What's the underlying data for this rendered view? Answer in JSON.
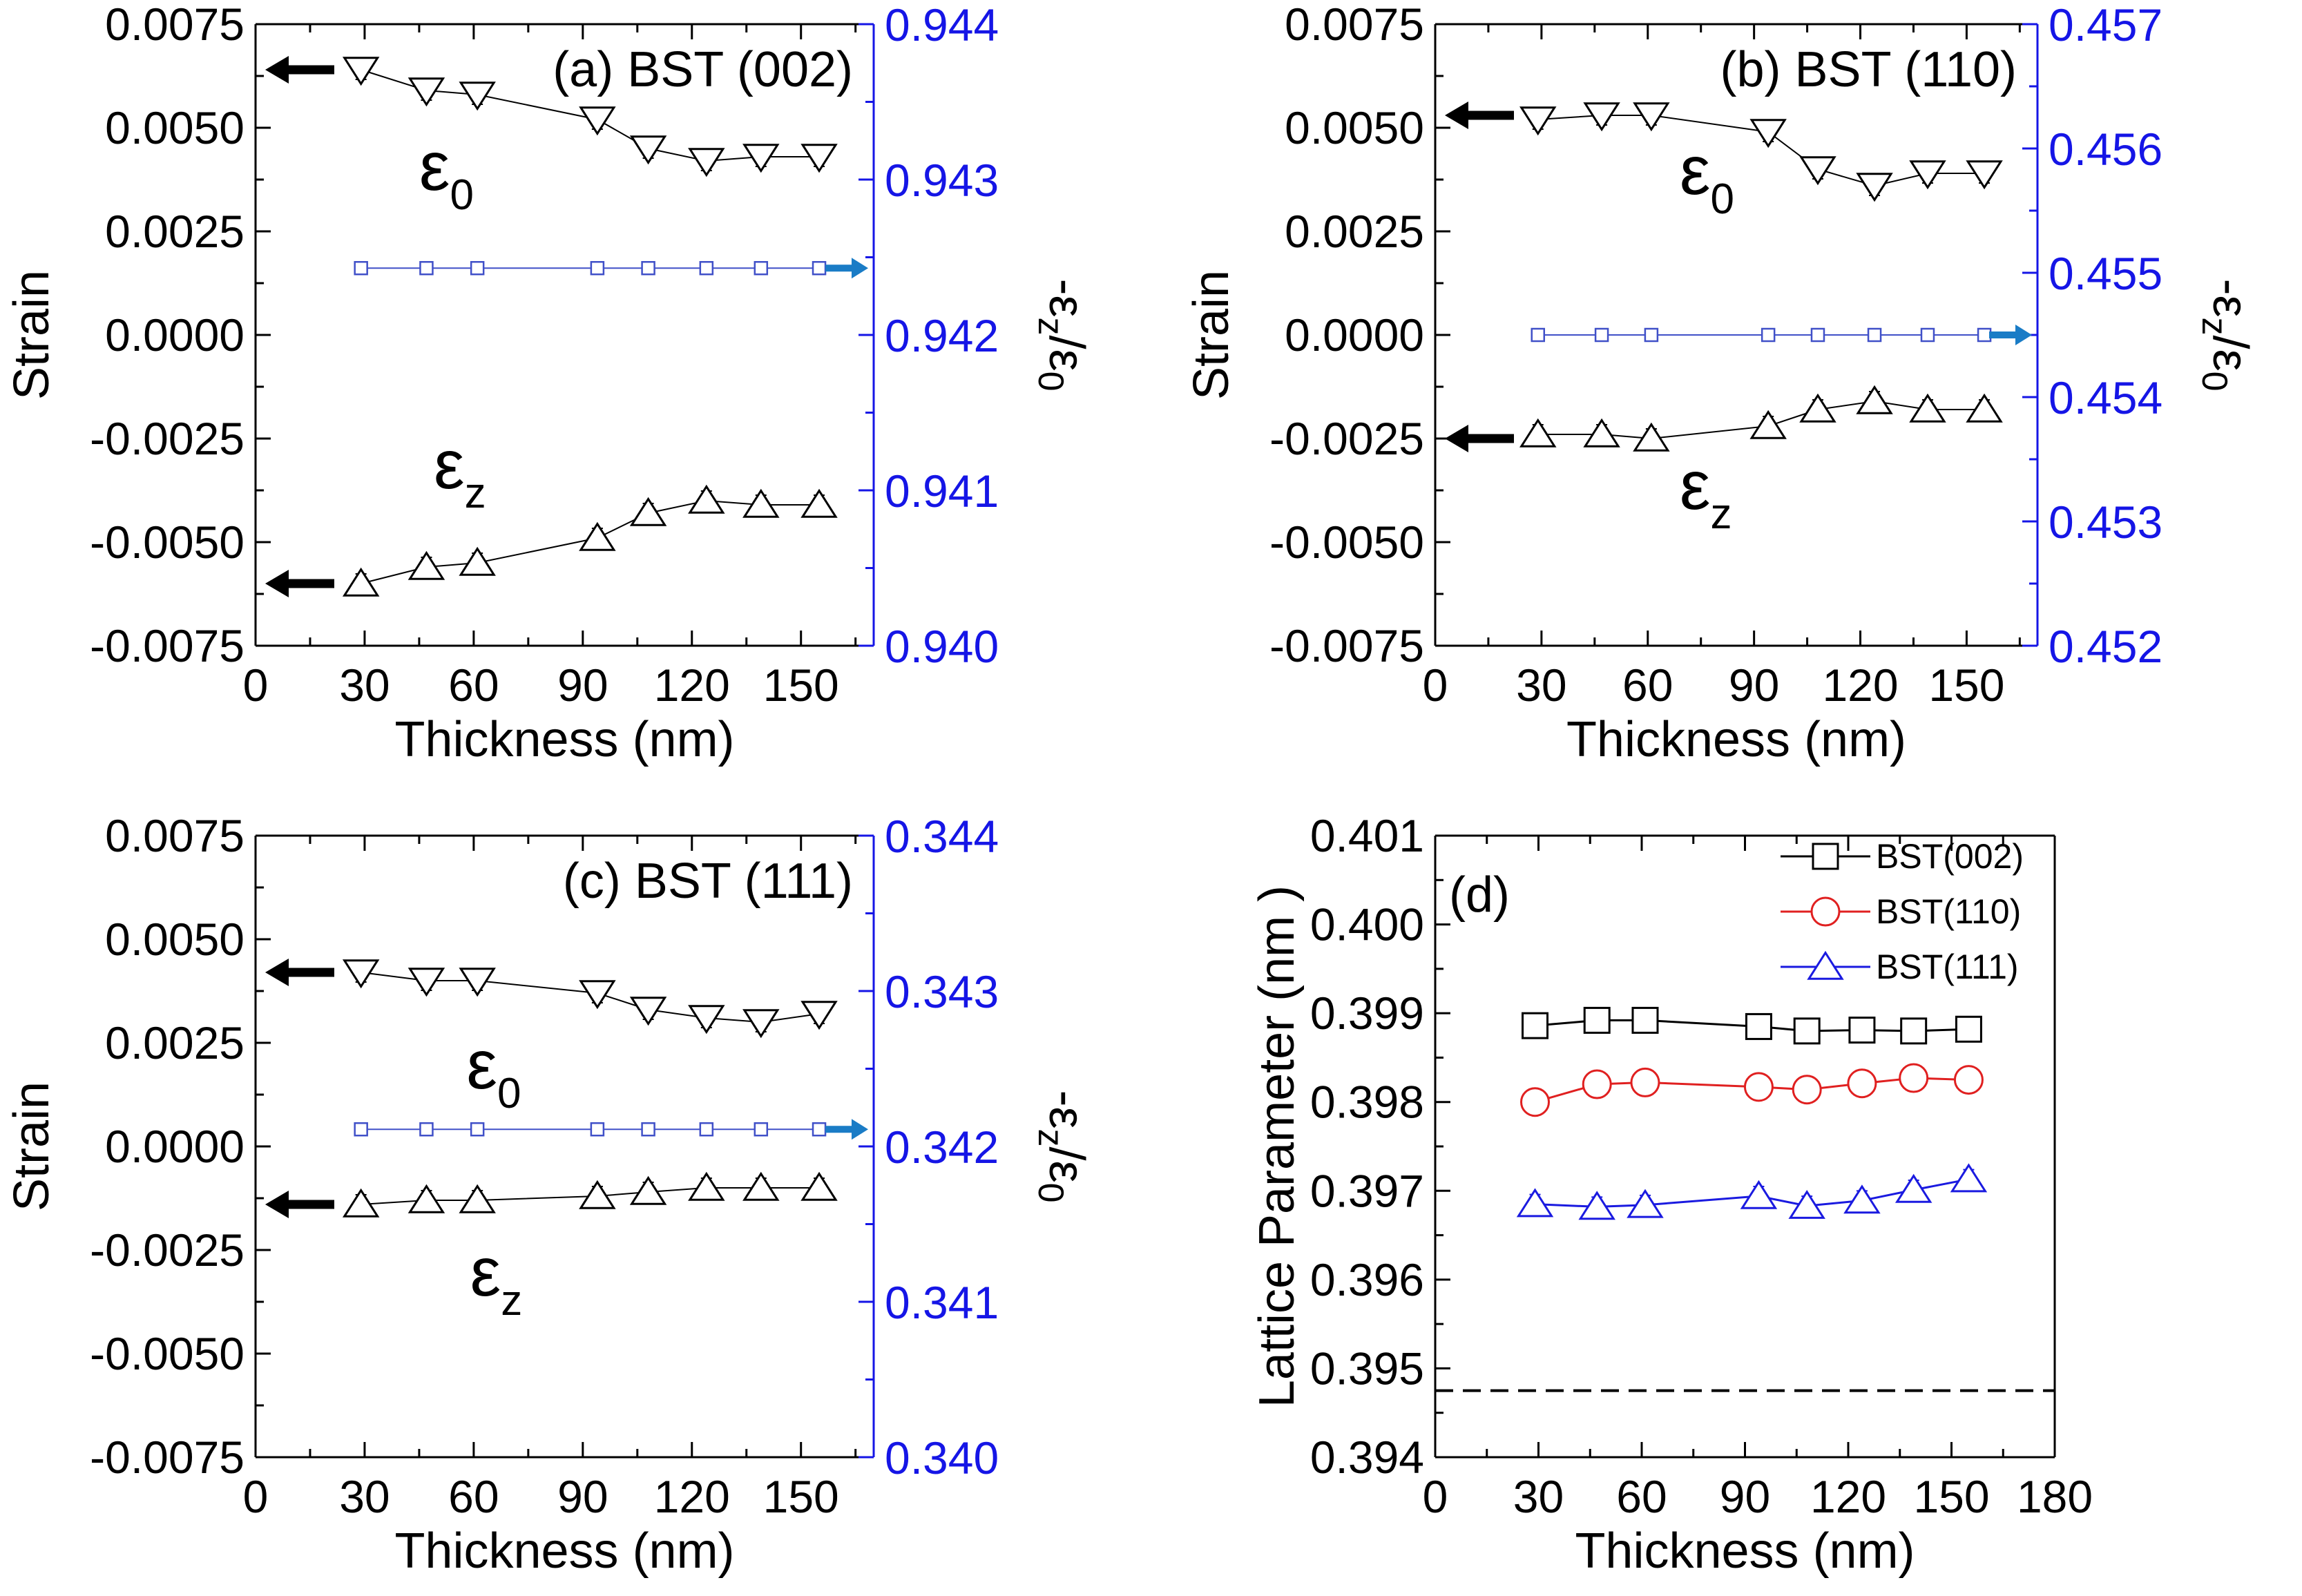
{
  "figure": {
    "colors": {
      "black": "#000000",
      "blue_axis": "#1515e6",
      "marker_blue": "#4050c8",
      "arrow_blue": "#1a7cc6",
      "red": "#e02020",
      "blue_series": "#1a1ae0"
    }
  },
  "chart_data": [
    {
      "id": "a",
      "type": "line",
      "title": "(a) BST (002)",
      "xlabel": "Thickness (nm)",
      "ylabel": "Strain",
      "y2label": "-ε_z/ε_0",
      "y2label_parts": {
        "main": "-ε",
        "sub1": "z",
        "slash": "/ε",
        "sub2": "0"
      },
      "xlim": [
        0,
        170
      ],
      "xticks": [
        0,
        30,
        60,
        90,
        120,
        150
      ],
      "xtick_labels": [
        "0",
        "30",
        "60",
        "90",
        "120",
        "150"
      ],
      "ylim": [
        -0.0075,
        0.0075
      ],
      "yticks": [
        -0.0075,
        -0.005,
        -0.0025,
        0,
        0.0025,
        0.005,
        0.0075
      ],
      "ytick_labels": [
        "-0.0075",
        "-0.0050",
        "-0.0025",
        "0.0000",
        "0.0025",
        "0.0050",
        "0.0075"
      ],
      "y2lim": [
        0.94,
        0.944
      ],
      "y2ticks": [
        0.94,
        0.941,
        0.942,
        0.943,
        0.944
      ],
      "y2tick_labels": [
        "0.940",
        "0.941",
        "0.942",
        "0.943",
        "0.944"
      ],
      "series": [
        {
          "name": "ε0",
          "marker": "triangle-down",
          "axis": "left",
          "color": "#000000",
          "x": [
            29,
            47,
            61,
            94,
            108,
            124,
            139,
            155
          ],
          "y": [
            0.0064,
            0.0059,
            0.0058,
            0.0052,
            0.0045,
            0.0042,
            0.0043,
            0.0043
          ]
        },
        {
          "name": "εz",
          "marker": "triangle-up",
          "axis": "left",
          "color": "#000000",
          "x": [
            29,
            47,
            61,
            94,
            108,
            124,
            139,
            155
          ],
          "y": [
            -0.006,
            -0.0056,
            -0.0055,
            -0.0049,
            -0.0043,
            -0.004,
            -0.0041,
            -0.0041
          ]
        },
        {
          "name": "-εz/ε0",
          "marker": "square-small",
          "axis": "right",
          "color": "#4050c8",
          "x": [
            29,
            47,
            61,
            94,
            108,
            124,
            139,
            155
          ],
          "y": [
            0.94243,
            0.94243,
            0.94243,
            0.94243,
            0.94243,
            0.94243,
            0.94243,
            0.94243
          ]
        }
      ],
      "annotations": [
        {
          "label": "ε",
          "sub": "0",
          "x": 45,
          "y": 0.0035
        },
        {
          "label": "ε",
          "sub": "z",
          "x": 49,
          "y": -0.0037
        }
      ],
      "arrows": [
        {
          "dir": "left",
          "color": "#000000",
          "y": 0.0064,
          "axis": "left"
        },
        {
          "dir": "left",
          "color": "#000000",
          "y": -0.006,
          "axis": "left"
        },
        {
          "dir": "right",
          "color": "#1a7cc6",
          "y": 0.94243,
          "axis": "right"
        }
      ]
    },
    {
      "id": "b",
      "type": "line",
      "title": "(b) BST (110)",
      "xlabel": "Thickness (nm)",
      "ylabel": "Strain",
      "y2label": "-ε_z/ε_0",
      "y2label_parts": {
        "main": "-ε",
        "sub1": "z",
        "slash": "/ε",
        "sub2": "0"
      },
      "xlim": [
        0,
        170
      ],
      "xticks": [
        0,
        30,
        60,
        90,
        120,
        150
      ],
      "xtick_labels": [
        "0",
        "30",
        "60",
        "90",
        "120",
        "150"
      ],
      "ylim": [
        -0.0075,
        0.0075
      ],
      "yticks": [
        -0.0075,
        -0.005,
        -0.0025,
        0,
        0.0025,
        0.005,
        0.0075
      ],
      "ytick_labels": [
        "-0.0075",
        "-0.0050",
        "-0.0025",
        "0.0000",
        "0.0025",
        "0.0050",
        "0.0075"
      ],
      "y2lim": [
        0.452,
        0.457
      ],
      "y2ticks": [
        0.452,
        0.453,
        0.454,
        0.455,
        0.456,
        0.457
      ],
      "y2tick_labels": [
        "0.452",
        "0.453",
        "0.454",
        "0.455",
        "0.456",
        "0.457"
      ],
      "series": [
        {
          "name": "ε0",
          "marker": "triangle-down",
          "axis": "left",
          "color": "#000000",
          "x": [
            29,
            47,
            61,
            94,
            108,
            124,
            139,
            155
          ],
          "y": [
            0.0052,
            0.0053,
            0.0053,
            0.0049,
            0.004,
            0.0036,
            0.0039,
            0.0039
          ]
        },
        {
          "name": "εz",
          "marker": "triangle-up",
          "axis": "left",
          "color": "#000000",
          "x": [
            29,
            47,
            61,
            94,
            108,
            124,
            139,
            155
          ],
          "y": [
            -0.0024,
            -0.0024,
            -0.0025,
            -0.0022,
            -0.0018,
            -0.0016,
            -0.0018,
            -0.0018
          ]
        },
        {
          "name": "-εz/ε0",
          "marker": "square-small",
          "axis": "right",
          "color": "#4050c8",
          "x": [
            29,
            47,
            61,
            94,
            108,
            124,
            139,
            155
          ],
          "y": [
            0.4545,
            0.4545,
            0.4545,
            0.4545,
            0.4545,
            0.4545,
            0.4545,
            0.4545
          ]
        }
      ],
      "annotations": [
        {
          "label": "ε",
          "sub": "0",
          "x": 69,
          "y": 0.0034
        },
        {
          "label": "ε",
          "sub": "z",
          "x": 69,
          "y": -0.0042
        }
      ],
      "arrows": [
        {
          "dir": "left",
          "color": "#000000",
          "y": 0.0053,
          "axis": "left"
        },
        {
          "dir": "left",
          "color": "#000000",
          "y": -0.0025,
          "axis": "left"
        },
        {
          "dir": "right",
          "color": "#1a7cc6",
          "y": 0.4545,
          "axis": "right"
        }
      ]
    },
    {
      "id": "c",
      "type": "line",
      "title": "(c) BST (111)",
      "xlabel": "Thickness (nm)",
      "ylabel": "Strain",
      "y2label": "-ε_z/ε_0",
      "y2label_parts": {
        "main": "-ε",
        "sub1": "z",
        "slash": "/ε",
        "sub2": "0"
      },
      "xlim": [
        0,
        170
      ],
      "xticks": [
        0,
        30,
        60,
        90,
        120,
        150
      ],
      "xtick_labels": [
        "0",
        "30",
        "60",
        "90",
        "120",
        "150"
      ],
      "ylim": [
        -0.0075,
        0.0075
      ],
      "yticks": [
        -0.0075,
        -0.005,
        -0.0025,
        0,
        0.0025,
        0.005,
        0.0075
      ],
      "ytick_labels": [
        "-0.0075",
        "-0.0050",
        "-0.0025",
        "0.0000",
        "0.0025",
        "0.0050",
        "0.0075"
      ],
      "y2lim": [
        0.34,
        0.344
      ],
      "y2ticks": [
        0.34,
        0.341,
        0.342,
        0.343,
        0.344
      ],
      "y2tick_labels": [
        "0.340",
        "0.341",
        "0.342",
        "0.343",
        "0.344"
      ],
      "series": [
        {
          "name": "ε0",
          "marker": "triangle-down",
          "axis": "left",
          "color": "#000000",
          "x": [
            29,
            47,
            61,
            94,
            108,
            124,
            139,
            155
          ],
          "y": [
            0.0042,
            0.004,
            0.004,
            0.0037,
            0.0033,
            0.0031,
            0.003,
            0.0032
          ]
        },
        {
          "name": "εz",
          "marker": "triangle-up",
          "axis": "left",
          "color": "#000000",
          "x": [
            29,
            47,
            61,
            94,
            108,
            124,
            139,
            155
          ],
          "y": [
            -0.0014,
            -0.0013,
            -0.0013,
            -0.0012,
            -0.0011,
            -0.001,
            -0.001,
            -0.001
          ]
        },
        {
          "name": "-εz/ε0",
          "marker": "square-small",
          "axis": "right",
          "color": "#4050c8",
          "x": [
            29,
            47,
            61,
            94,
            108,
            124,
            139,
            155
          ],
          "y": [
            0.34211,
            0.34211,
            0.34211,
            0.34211,
            0.34211,
            0.34211,
            0.34211,
            0.34211
          ]
        }
      ],
      "annotations": [
        {
          "label": "ε",
          "sub": "0",
          "x": 58,
          "y": 0.0014
        },
        {
          "label": "ε",
          "sub": "z",
          "x": 59,
          "y": -0.0036
        }
      ],
      "arrows": [
        {
          "dir": "left",
          "color": "#000000",
          "y": 0.0042,
          "axis": "left"
        },
        {
          "dir": "left",
          "color": "#000000",
          "y": -0.0014,
          "axis": "left"
        },
        {
          "dir": "right",
          "color": "#1a7cc6",
          "y": 0.34211,
          "axis": "right"
        }
      ]
    },
    {
      "id": "d",
      "type": "line",
      "title": "(d)",
      "xlabel": "Thickness (nm)",
      "ylabel": "Lattice Parameter (nm )",
      "xlim": [
        0,
        180
      ],
      "xticks": [
        0,
        30,
        60,
        90,
        120,
        150,
        180
      ],
      "xtick_labels": [
        "0",
        "30",
        "60",
        "90",
        "120",
        "150",
        "180"
      ],
      "ylim": [
        0.394,
        0.401
      ],
      "yticks": [
        0.394,
        0.395,
        0.396,
        0.397,
        0.398,
        0.399,
        0.4,
        0.401
      ],
      "ytick_labels": [
        "0.394",
        "0.395",
        "0.396",
        "0.397",
        "0.398",
        "0.399",
        "0.400",
        "0.401"
      ],
      "legend_position": "top-right",
      "reference_line": {
        "y": 0.39475,
        "style": "dashed"
      },
      "series": [
        {
          "name": "BST(002)",
          "marker": "square",
          "color": "#000000",
          "x": [
            29,
            47,
            61,
            94,
            108,
            124,
            139,
            155
          ],
          "y": [
            0.39886,
            0.39892,
            0.39892,
            0.39885,
            0.3988,
            0.39881,
            0.3988,
            0.39882
          ]
        },
        {
          "name": "BST(110)",
          "marker": "circle",
          "color": "#e02020",
          "x": [
            29,
            47,
            61,
            94,
            108,
            124,
            139,
            155
          ],
          "y": [
            0.398,
            0.3982,
            0.39822,
            0.39817,
            0.39814,
            0.39821,
            0.39827,
            0.39825
          ]
        },
        {
          "name": "BST(111)",
          "marker": "triangle-up",
          "color": "#1a1ae0",
          "x": [
            29,
            47,
            61,
            94,
            108,
            124,
            139,
            155
          ],
          "y": [
            0.39685,
            0.39682,
            0.39684,
            0.39694,
            0.39683,
            0.39689,
            0.39701,
            0.39713
          ]
        }
      ]
    }
  ]
}
